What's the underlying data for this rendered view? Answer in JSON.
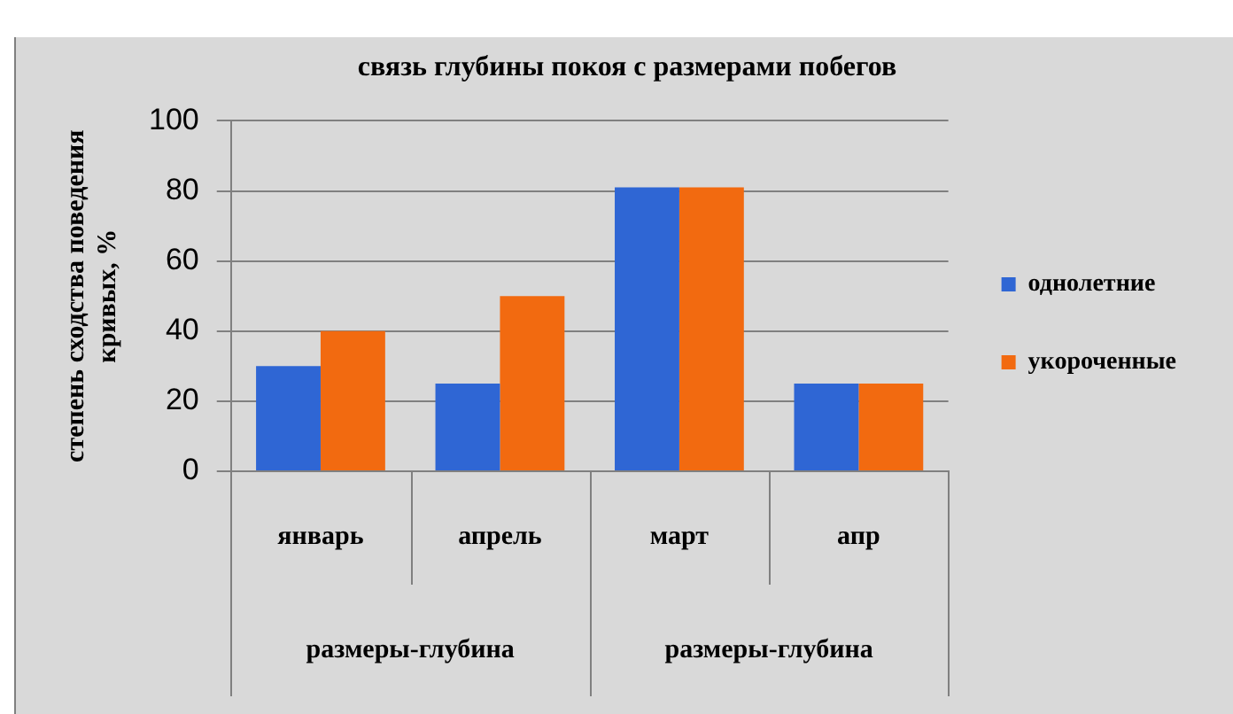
{
  "chart_data": {
    "type": "bar",
    "title": "связь глубины покоя с размерами побегов",
    "ylabel": "степень сходства поведения кривых, %",
    "categories": [
      "январь",
      "апрель",
      "март",
      "апр"
    ],
    "annotations": [
      "размеры-глубина",
      "размеры-глубина"
    ],
    "series": [
      {
        "name": "однолетние",
        "color": "#2f66d4",
        "values": [
          30,
          25,
          81,
          25
        ]
      },
      {
        "name": "укороченные",
        "color": "#f26a10",
        "values": [
          40,
          50,
          81,
          25
        ]
      }
    ],
    "ylim": [
      0,
      100
    ],
    "yticks": [
      0,
      20,
      40,
      60,
      80,
      100
    ],
    "grid": "y",
    "legend": "right"
  }
}
